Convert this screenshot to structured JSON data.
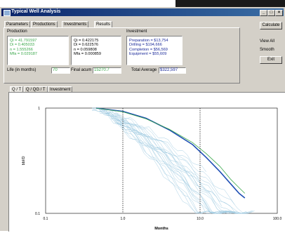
{
  "window": {
    "title": "Typical Well Analysis"
  },
  "top_tabs": [
    "Parameters",
    "Productions",
    "Investments",
    "Results"
  ],
  "active_top_tab": 3,
  "production": {
    "heading": "Production",
    "left_lines": [
      "Qi = 41.791597",
      "Di = 0.405033",
      "n = 1.555266",
      "Mfa = 0.029187"
    ],
    "right_lines": [
      "Qi = 0.422175",
      "Di = 0.622576",
      "n = 0.059808",
      "Mfa = 0.000859"
    ]
  },
  "investment": {
    "heading": "Investment",
    "lines": [
      "Preparation = $13,754",
      "Drilling = $194,666",
      "Completion = $56,569",
      "Equipment = $55,609"
    ]
  },
  "life": {
    "label": "Life (in months)",
    "value": "70"
  },
  "final_acum": {
    "label": "Final acum",
    "value": "15270.7"
  },
  "total_average": {
    "label": "Total Average",
    "value": "$322,597"
  },
  "buttons": {
    "calculate": "Calculate",
    "view_all": "View All",
    "smooth": "Smooth",
    "exit": "Exit"
  },
  "bottom_tabs": [
    "Q / T",
    "Q / QG / T",
    "Investment"
  ],
  "active_bottom_tab": 0,
  "colors": {
    "titlebar": "#0a246a",
    "fit_line": "#1f4fb5",
    "well_lines": "#9cc8e0",
    "green_line": "#3aa84a"
  },
  "chart_data": {
    "type": "line",
    "xscale": "log",
    "yscale": "log",
    "xlabel": "Months",
    "ylabel": "bbl/D",
    "xlim": [
      0.1,
      100
    ],
    "ylim": [
      0.1,
      1
    ],
    "x_ticks": [
      "0.1",
      "1.0",
      "10.0",
      "100.0"
    ],
    "y_ticks": [
      "1",
      "0.1"
    ],
    "grid": false,
    "series": [
      {
        "x": [
          0.45,
          1,
          2,
          4,
          8,
          12,
          18,
          25,
          32,
          38
        ],
        "y": [
          1.0,
          0.93,
          0.8,
          0.62,
          0.45,
          0.34,
          0.25,
          0.19,
          0.155,
          0.14
        ]
      },
      {
        "x": [
          0.45,
          1,
          2,
          4,
          8,
          12,
          18,
          25,
          32,
          38
        ],
        "y": [
          1.0,
          0.92,
          0.79,
          0.63,
          0.47,
          0.37,
          0.28,
          0.21,
          0.175,
          0.155
        ]
      }
    ]
  }
}
